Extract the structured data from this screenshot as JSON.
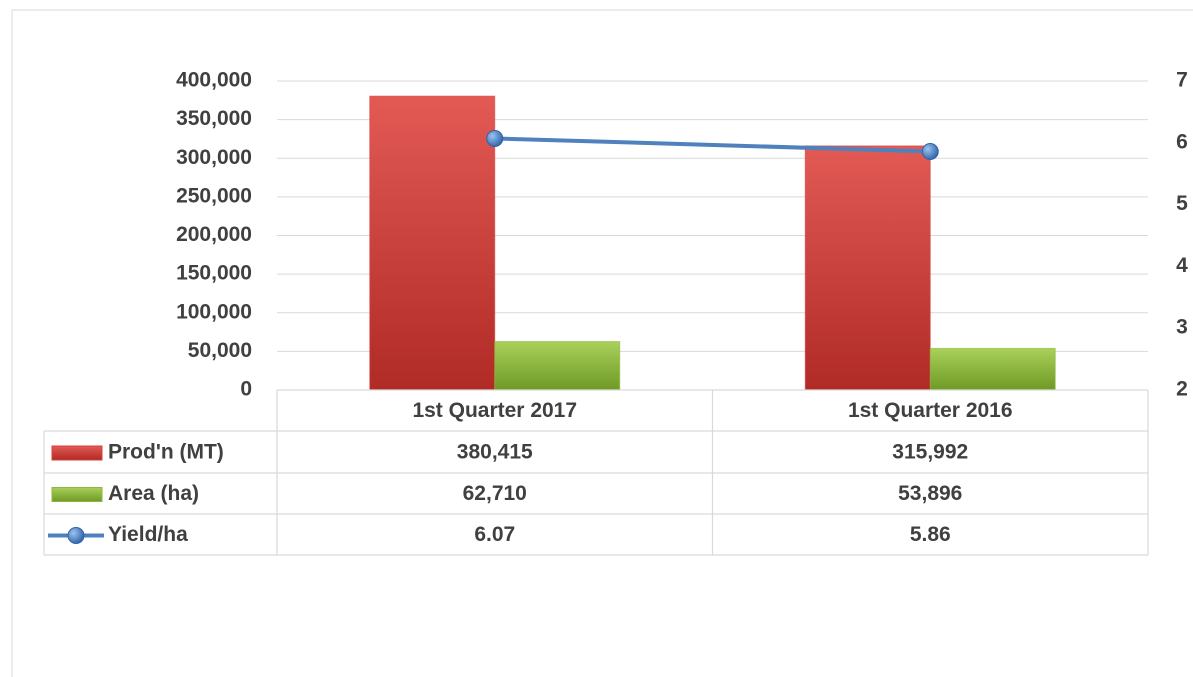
{
  "chart_data": {
    "type": "bar-line",
    "categories": [
      "1st Quarter 2017",
      "1st Quarter 2016"
    ],
    "series": [
      {
        "name": "Prod'n (MT)",
        "color": "#d9413e",
        "type": "bar",
        "values": [
          380415,
          315992
        ],
        "value_labels": [
          "380,415",
          "315,992"
        ]
      },
      {
        "name": "Area (ha)",
        "color": "#8fb83a",
        "type": "bar",
        "values": [
          62710,
          53896
        ],
        "value_labels": [
          "62,710",
          "53,896"
        ]
      },
      {
        "name": "Yield/ha",
        "color": "#4f81bd",
        "type": "line",
        "axis": "y2",
        "values": [
          6.07,
          5.86
        ]
      }
    ],
    "ylim": [
      0,
      400000
    ],
    "yticks": [
      0,
      {
        "value": 50000,
        "label": "50,000"
      },
      {
        "value": 100000,
        "label": "100,000"
      },
      {
        "value": 150000,
        "label": "150,000"
      },
      {
        "value": 200000,
        "label": "200,000"
      },
      {
        "value": 250000,
        "label": "250,000"
      },
      {
        "value": 300000,
        "label": "300,000"
      },
      {
        "value": 350000,
        "label": "350,000"
      },
      {
        "value": 400000,
        "label": "400,000"
      }
    ],
    "y2lim": [
      2,
      7
    ],
    "y2ticks": [
      2,
      3,
      4,
      5,
      6,
      7
    ],
    "grid": true
  }
}
